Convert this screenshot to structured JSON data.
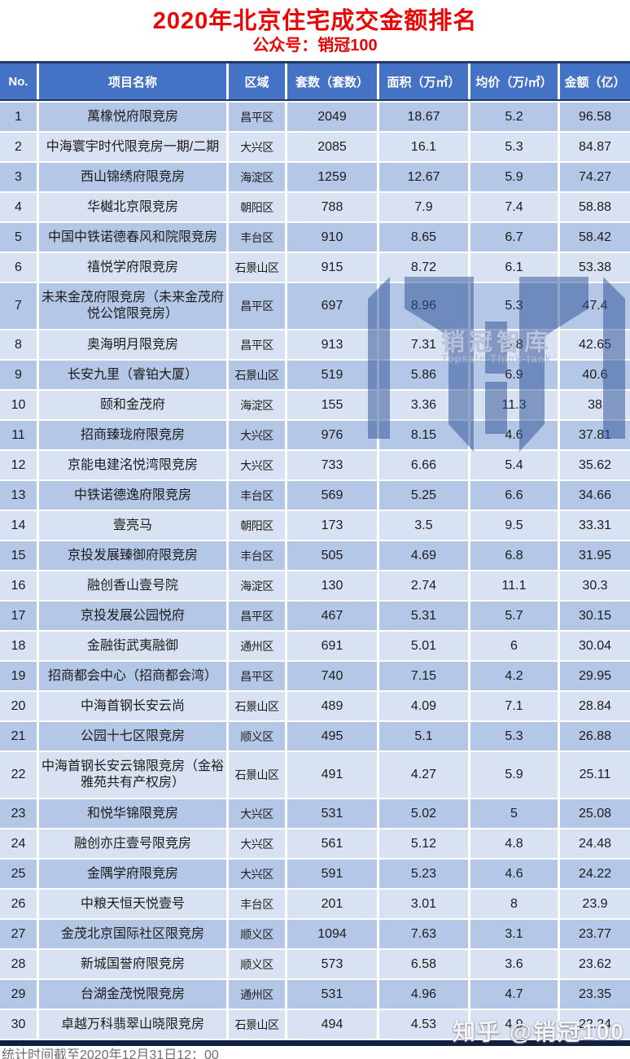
{
  "page": {
    "title": "2020年北京住宅成交金额排名",
    "subtitle": "公众号：销冠100",
    "footer": "统计时间截至2020年12月31日12：00"
  },
  "watermark": {
    "logo_icon": "topsale-m-logo",
    "brand": "销冠智库",
    "brand_en": "Topsale Think-tank",
    "zhihu_credit": "知乎 @销冠100"
  },
  "colors": {
    "title_red": "#e80606",
    "header_bg": "#4472C4",
    "row_odd": "#B4C7E7",
    "row_even": "#D9E2F2",
    "border_navy": "#1F3864",
    "bottom_bar": "#10203e"
  },
  "chart_data": {
    "type": "table",
    "title": "2020年北京住宅成交金额排名",
    "columns": [
      "No.",
      "项目名称",
      "区域",
      "套数（套数）",
      "面积（万㎡）",
      "均价（万/㎡）",
      "金额（亿）"
    ],
    "rows": [
      [
        "1",
        "萬橡悦府限竞房",
        "昌平区",
        "2049",
        "18.67",
        "5.2",
        "96.58"
      ],
      [
        "2",
        "中海寰宇时代限竞房一期/二期",
        "大兴区",
        "2085",
        "16.1",
        "5.3",
        "84.87"
      ],
      [
        "3",
        "西山锦绣府限竞房",
        "海淀区",
        "1259",
        "12.67",
        "5.9",
        "74.27"
      ],
      [
        "4",
        "华樾北京限竞房",
        "朝阳区",
        "788",
        "7.9",
        "7.4",
        "58.88"
      ],
      [
        "5",
        "中国中铁诺德春风和院限竞房",
        "丰台区",
        "910",
        "8.65",
        "6.7",
        "58.42"
      ],
      [
        "6",
        "禧悦学府限竞房",
        "石景山区",
        "915",
        "8.72",
        "6.1",
        "53.38"
      ],
      [
        "7",
        "未来金茂府限竞房（未来金茂府悦公馆限竞房）",
        "昌平区",
        "697",
        "8.96",
        "5.3",
        "47.4"
      ],
      [
        "8",
        "奥海明月限竞房",
        "昌平区",
        "913",
        "7.31",
        "5.8",
        "42.65"
      ],
      [
        "9",
        "长安九里（睿铂大厦）",
        "石景山区",
        "519",
        "5.86",
        "6.9",
        "40.6"
      ],
      [
        "10",
        "颐和金茂府",
        "海淀区",
        "155",
        "3.36",
        "11.3",
        "38"
      ],
      [
        "11",
        "招商臻珑府限竞房",
        "大兴区",
        "976",
        "8.15",
        "4.6",
        "37.81"
      ],
      [
        "12",
        "京能电建洺悦湾限竞房",
        "大兴区",
        "733",
        "6.66",
        "5.4",
        "35.62"
      ],
      [
        "13",
        "中铁诺德逸府限竞房",
        "丰台区",
        "569",
        "5.25",
        "6.6",
        "34.66"
      ],
      [
        "14",
        "壹亮马",
        "朝阳区",
        "173",
        "3.5",
        "9.5",
        "33.31"
      ],
      [
        "15",
        "京投发展臻御府限竞房",
        "丰台区",
        "505",
        "4.69",
        "6.8",
        "31.95"
      ],
      [
        "16",
        "融创香山壹号院",
        "海淀区",
        "130",
        "2.74",
        "11.1",
        "30.3"
      ],
      [
        "17",
        "京投发展公园悦府",
        "昌平区",
        "467",
        "5.31",
        "5.7",
        "30.15"
      ],
      [
        "18",
        "金融街武夷融御",
        "通州区",
        "691",
        "5.01",
        "6",
        "30.04"
      ],
      [
        "19",
        "招商都会中心（招商都会湾）",
        "昌平区",
        "740",
        "7.15",
        "4.2",
        "29.95"
      ],
      [
        "20",
        "中海首钢长安云尚",
        "石景山区",
        "489",
        "4.09",
        "7.1",
        "28.84"
      ],
      [
        "21",
        "公园十七区限竞房",
        "顺义区",
        "495",
        "5.1",
        "5.3",
        "26.88"
      ],
      [
        "22",
        "中海首钢长安云锦限竞房（金裕雅苑共有产权房）",
        "石景山区",
        "491",
        "4.27",
        "5.9",
        "25.11"
      ],
      [
        "23",
        "和悦华锦限竞房",
        "大兴区",
        "531",
        "5.02",
        "5",
        "25.08"
      ],
      [
        "24",
        "融创亦庄壹号限竞房",
        "大兴区",
        "561",
        "5.12",
        "4.8",
        "24.48"
      ],
      [
        "25",
        "金隅学府限竞房",
        "大兴区",
        "591",
        "5.23",
        "4.6",
        "24.22"
      ],
      [
        "26",
        "中粮天恒天悦壹号",
        "丰台区",
        "201",
        "3.01",
        "8",
        "23.9"
      ],
      [
        "27",
        "金茂北京国际社区限竞房",
        "顺义区",
        "1094",
        "7.63",
        "3.1",
        "23.77"
      ],
      [
        "28",
        "新城国誉府限竞房",
        "顺义区",
        "573",
        "6.58",
        "3.6",
        "23.62"
      ],
      [
        "29",
        "台湖金茂悦限竞房",
        "通州区",
        "531",
        "4.96",
        "4.7",
        "23.35"
      ],
      [
        "30",
        "卓越万科翡翠山晓限竞房",
        "石景山区",
        "494",
        "4.53",
        "4.9",
        "22.24"
      ]
    ]
  }
}
